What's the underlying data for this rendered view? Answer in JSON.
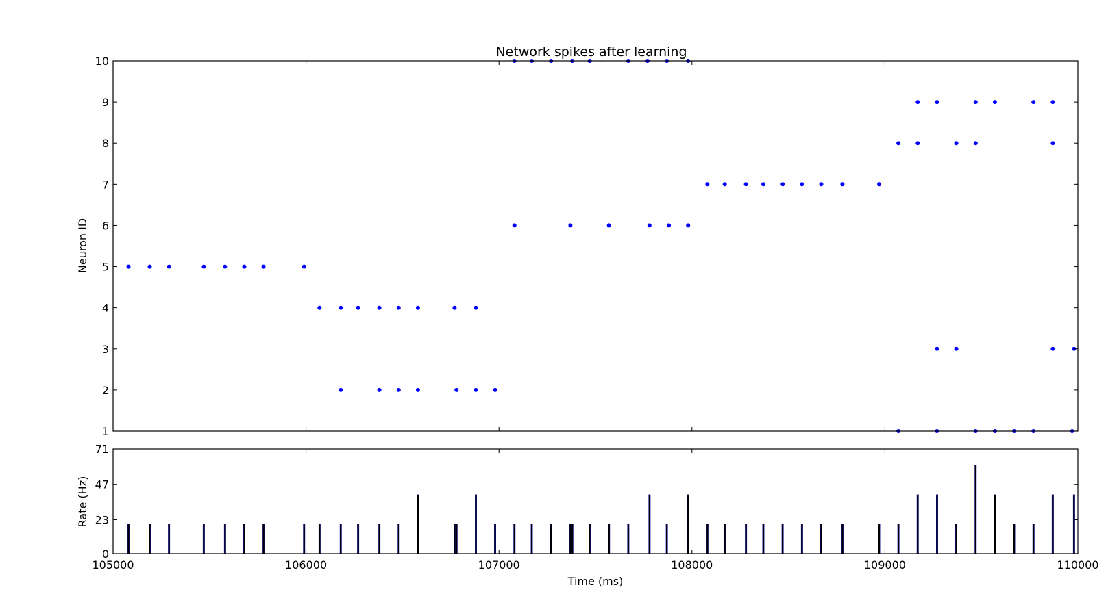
{
  "chart_data": [
    {
      "type": "scatter",
      "title": "Network spikes after learning",
      "xlabel": "",
      "ylabel": "Neuron ID",
      "xlim": [
        105000,
        110000
      ],
      "ylim": [
        1,
        10
      ],
      "yticks": [
        "1",
        "2",
        "3",
        "4",
        "5",
        "6",
        "7",
        "8",
        "9",
        "10"
      ],
      "grid": false,
      "marker_color": "#0000ff",
      "series": [
        {
          "points": [
            [
              105080,
              5
            ],
            [
              105190,
              5
            ],
            [
              105290,
              5
            ],
            [
              105470,
              5
            ],
            [
              105580,
              5
            ],
            [
              105680,
              5
            ],
            [
              105780,
              5
            ],
            [
              105990,
              5
            ],
            [
              106070,
              4
            ],
            [
              106180,
              4
            ],
            [
              106270,
              4
            ],
            [
              106380,
              4
            ],
            [
              106480,
              4
            ],
            [
              106580,
              4
            ],
            [
              106770,
              4
            ],
            [
              106880,
              4
            ],
            [
              106180,
              2
            ],
            [
              106380,
              2
            ],
            [
              106480,
              2
            ],
            [
              106580,
              2
            ],
            [
              106780,
              2
            ],
            [
              106880,
              2
            ],
            [
              106980,
              2
            ],
            [
              107080,
              6
            ],
            [
              107370,
              6
            ],
            [
              107570,
              6
            ],
            [
              107780,
              6
            ],
            [
              107880,
              6
            ],
            [
              107980,
              6
            ],
            [
              107080,
              10
            ],
            [
              107170,
              10
            ],
            [
              107270,
              10
            ],
            [
              107380,
              10
            ],
            [
              107470,
              10
            ],
            [
              107670,
              10
            ],
            [
              107770,
              10
            ],
            [
              107870,
              10
            ],
            [
              107980,
              10
            ],
            [
              108080,
              7
            ],
            [
              108170,
              7
            ],
            [
              108280,
              7
            ],
            [
              108370,
              7
            ],
            [
              108470,
              7
            ],
            [
              108570,
              7
            ],
            [
              108670,
              7
            ],
            [
              108780,
              7
            ],
            [
              108970,
              7
            ],
            [
              109070,
              8
            ],
            [
              109170,
              8
            ],
            [
              109370,
              8
            ],
            [
              109470,
              8
            ],
            [
              109870,
              8
            ],
            [
              109170,
              9
            ],
            [
              109270,
              9
            ],
            [
              109470,
              9
            ],
            [
              109570,
              9
            ],
            [
              109770,
              9
            ],
            [
              109870,
              9
            ],
            [
              109270,
              3
            ],
            [
              109370,
              3
            ],
            [
              109870,
              3
            ],
            [
              109980,
              3
            ],
            [
              109070,
              1
            ],
            [
              109270,
              1
            ],
            [
              109470,
              1
            ],
            [
              109570,
              1
            ],
            [
              109670,
              1
            ],
            [
              109770,
              1
            ],
            [
              109970,
              1
            ]
          ]
        }
      ]
    },
    {
      "type": "bar",
      "title": "",
      "xlabel": "Time (ms)",
      "ylabel": "Rate (Hz)",
      "xlim": [
        105000,
        110000
      ],
      "ylim": [
        0,
        71
      ],
      "xticks": [
        "105000",
        "106000",
        "107000",
        "108000",
        "109000",
        "110000"
      ],
      "yticks": [
        "0",
        "23",
        "47",
        "71"
      ],
      "bar_color": "#000000",
      "bar_edge_color": "#0000aa",
      "x": [
        105080,
        105190,
        105290,
        105470,
        105580,
        105680,
        105780,
        105990,
        106070,
        106180,
        106270,
        106380,
        106480,
        106580,
        106770,
        106780,
        106880,
        106980,
        107080,
        107170,
        107270,
        107370,
        107380,
        107470,
        107570,
        107670,
        107780,
        107870,
        107980,
        108080,
        108170,
        108280,
        108370,
        108470,
        108570,
        108670,
        108780,
        108970,
        109070,
        109170,
        109270,
        109370,
        109470,
        109570,
        109670,
        109770,
        109870,
        109980
      ],
      "values": [
        20,
        20,
        20,
        20,
        20,
        20,
        20,
        20,
        20,
        20,
        20,
        20,
        20,
        40,
        20,
        20,
        40,
        20,
        20,
        20,
        20,
        20,
        20,
        20,
        20,
        20,
        40,
        20,
        40,
        20,
        20,
        20,
        20,
        20,
        20,
        20,
        20,
        20,
        20,
        40,
        40,
        20,
        60,
        40,
        20,
        20,
        40,
        40
      ]
    }
  ]
}
